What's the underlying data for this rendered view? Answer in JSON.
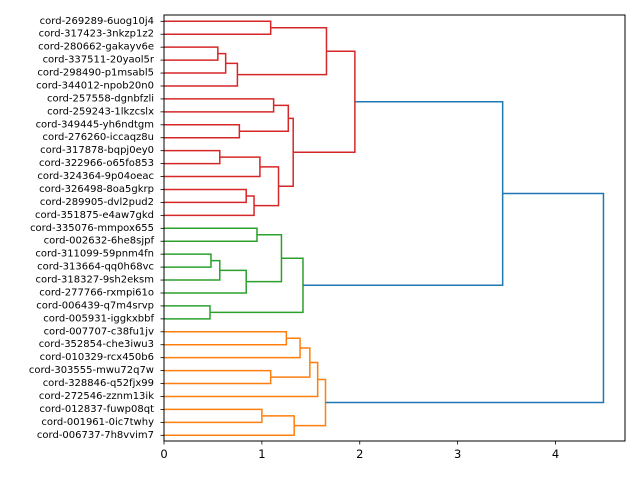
{
  "chart_data": {
    "type": "dendrogram",
    "orientation": "left",
    "title": "",
    "xlabel": "",
    "ylabel": "",
    "xlim": [
      0,
      4.71
    ],
    "x_ticks": [
      0,
      1,
      2,
      3,
      4
    ],
    "x_tick_labels": [
      "0",
      "1",
      "2",
      "3",
      "4"
    ],
    "grid": false,
    "colors": {
      "cluster_red": "#d62728",
      "cluster_green": "#2ca02c",
      "cluster_orange": "#ff7f0e",
      "above_threshold": "#1f77b4",
      "axis": "#000000"
    },
    "leaves": [
      "cord-269289-6uog10j4",
      "cord-317423-3nkzp1z2",
      "cord-280662-gakayv6e",
      "cord-337511-20yaol5r",
      "cord-298490-p1msabl5",
      "cord-344012-npob20n0",
      "cord-257558-dgnbfzli",
      "cord-259243-1lkzcslx",
      "cord-349445-yh6ndtgm",
      "cord-276260-iccaqz8u",
      "cord-317878-bqpj0ey0",
      "cord-322966-o65fo853",
      "cord-324364-9p04oeac",
      "cord-326498-8oa5gkrp",
      "cord-289905-dvl2pud2",
      "cord-351875-e4aw7gkd",
      "cord-335076-mmpox655",
      "cord-002632-6he8sjpf",
      "cord-311099-59pnm4fn",
      "cord-313664-qq0h68vc",
      "cord-318327-9sh2eksm",
      "cord-277766-rxmpi61o",
      "cord-006439-q7m4srvp",
      "cord-005931-iggkxbbf",
      "cord-007707-c38fu1jv",
      "cord-352854-che3iwu3",
      "cord-010329-rcx450b6",
      "cord-303555-mwu72q7w",
      "cord-328846-q52fjx99",
      "cord-272546-zznm13ik",
      "cord-012837-fuwp08qt",
      "cord-001961-0ic7twhy",
      "cord-006737-7h8vvim7"
    ],
    "merges": [
      {
        "id": "m1",
        "a": "L0",
        "b": "L1",
        "height": 1.09,
        "color": "cluster_red"
      },
      {
        "id": "m2",
        "a": "L2",
        "b": "L3",
        "height": 0.55,
        "color": "cluster_red"
      },
      {
        "id": "m3",
        "a": "m2",
        "b": "L4",
        "height": 0.63,
        "color": "cluster_red"
      },
      {
        "id": "m4",
        "a": "m3",
        "b": "L5",
        "height": 0.75,
        "color": "cluster_red"
      },
      {
        "id": "m5",
        "a": "m1",
        "b": "m4",
        "height": 1.66,
        "color": "cluster_red"
      },
      {
        "id": "m6",
        "a": "L6",
        "b": "L7",
        "height": 1.12,
        "color": "cluster_red"
      },
      {
        "id": "m7",
        "a": "L8",
        "b": "L9",
        "height": 0.77,
        "color": "cluster_red"
      },
      {
        "id": "m8",
        "a": "m6",
        "b": "m7",
        "height": 1.27,
        "color": "cluster_red"
      },
      {
        "id": "m9",
        "a": "L10",
        "b": "L11",
        "height": 0.57,
        "color": "cluster_red"
      },
      {
        "id": "m10",
        "a": "m9",
        "b": "L12",
        "height": 0.98,
        "color": "cluster_red"
      },
      {
        "id": "m11",
        "a": "L13",
        "b": "L14",
        "height": 0.84,
        "color": "cluster_red"
      },
      {
        "id": "m12",
        "a": "m11",
        "b": "L15",
        "height": 0.92,
        "color": "cluster_red"
      },
      {
        "id": "m13",
        "a": "m10",
        "b": "m12",
        "height": 1.17,
        "color": "cluster_red"
      },
      {
        "id": "m14",
        "a": "m8",
        "b": "m13",
        "height": 1.32,
        "color": "cluster_red"
      },
      {
        "id": "m15",
        "a": "m5",
        "b": "m14",
        "height": 1.95,
        "color": "cluster_red"
      },
      {
        "id": "m16",
        "a": "L16",
        "b": "L17",
        "height": 0.95,
        "color": "cluster_green"
      },
      {
        "id": "m17",
        "a": "L18",
        "b": "L19",
        "height": 0.48,
        "color": "cluster_green"
      },
      {
        "id": "m18",
        "a": "m17",
        "b": "L20",
        "height": 0.57,
        "color": "cluster_green"
      },
      {
        "id": "m19",
        "a": "m18",
        "b": "L21",
        "height": 0.84,
        "color": "cluster_green"
      },
      {
        "id": "m20",
        "a": "m16",
        "b": "m19",
        "height": 1.2,
        "color": "cluster_green"
      },
      {
        "id": "m21",
        "a": "L22",
        "b": "L23",
        "height": 0.47,
        "color": "cluster_green"
      },
      {
        "id": "m22",
        "a": "m20",
        "b": "m21",
        "height": 1.42,
        "color": "cluster_green"
      },
      {
        "id": "m23",
        "a": "L24",
        "b": "L25",
        "height": 1.25,
        "color": "cluster_orange"
      },
      {
        "id": "m24",
        "a": "m23",
        "b": "L26",
        "height": 1.39,
        "color": "cluster_orange"
      },
      {
        "id": "m25",
        "a": "L27",
        "b": "L28",
        "height": 1.09,
        "color": "cluster_orange"
      },
      {
        "id": "m26",
        "a": "m24",
        "b": "m25",
        "height": 1.49,
        "color": "cluster_orange"
      },
      {
        "id": "m27",
        "a": "m26",
        "b": "L29",
        "height": 1.57,
        "color": "cluster_orange"
      },
      {
        "id": "m28",
        "a": "L30",
        "b": "L31",
        "height": 1.0,
        "color": "cluster_orange"
      },
      {
        "id": "m29",
        "a": "m28",
        "b": "L32",
        "height": 1.33,
        "color": "cluster_orange"
      },
      {
        "id": "m30",
        "a": "m27",
        "b": "m29",
        "height": 1.65,
        "color": "cluster_orange"
      },
      {
        "id": "m31",
        "a": "m15",
        "b": "m22",
        "height": 3.46,
        "color": "above_threshold"
      },
      {
        "id": "m32",
        "a": "m31",
        "b": "m30",
        "height": 4.49,
        "color": "above_threshold"
      }
    ]
  }
}
